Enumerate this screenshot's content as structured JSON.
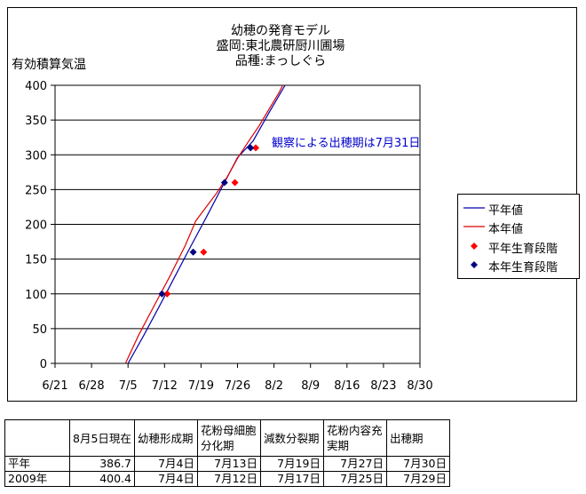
{
  "chart_data": {
    "type": "line",
    "title_lines": [
      "幼穂の発育モデル",
      "盛岡:東北農研厨川圃場",
      "品種:まっしぐら"
    ],
    "ylabel": "有効積算気温",
    "ylim": [
      0,
      400
    ],
    "yticks": [
      0,
      50,
      100,
      150,
      200,
      250,
      300,
      350,
      400
    ],
    "x_tick_labels": [
      "6/21",
      "6/28",
      "7/5",
      "7/12",
      "7/19",
      "7/26",
      "8/2",
      "8/9",
      "8/16",
      "8/23",
      "8/30"
    ],
    "x_ticks_days": [
      0,
      7,
      14,
      21,
      28,
      35,
      42,
      49,
      56,
      63,
      70
    ],
    "x_day_zero": "6/21",
    "x_range_days": [
      0,
      70
    ],
    "grid": "horizontal",
    "series": [
      {
        "name": "平年値",
        "kind": "line",
        "color": "#0000aa",
        "x": [
          14,
          17,
          20,
          23,
          26,
          29,
          32,
          35,
          38,
          41,
          44.5
        ],
        "y": [
          0,
          40,
          82,
          125,
          168,
          210,
          253,
          296,
          320,
          360,
          405
        ]
      },
      {
        "name": "本年値",
        "kind": "line",
        "color": "#dd0000",
        "x": [
          13.5,
          16,
          19,
          22,
          25,
          27,
          29,
          31,
          33,
          35,
          37,
          39,
          41,
          43,
          44
        ],
        "y": [
          0,
          40,
          83,
          125,
          170,
          205,
          225,
          245,
          268,
          295,
          318,
          340,
          365,
          390,
          405
        ]
      },
      {
        "name": "平年生育段階",
        "kind": "scatter",
        "color": "#ff0000",
        "marker": "diamond",
        "x": [
          21.5,
          28.5,
          34.5,
          38.5
        ],
        "y": [
          100,
          160,
          260,
          310
        ]
      },
      {
        "name": "本年生育段階",
        "kind": "scatter",
        "color": "#000080",
        "marker": "diamond",
        "x": [
          20.5,
          26.5,
          32.5,
          37.5
        ],
        "y": [
          100,
          160,
          260,
          310
        ]
      }
    ],
    "annotations": [
      {
        "text": "観察による出穂期は7月31日",
        "color": "#0000cc"
      }
    ],
    "legend_position": "right"
  },
  "table": {
    "headers": [
      "",
      "8月5日現在",
      "幼穂形成期",
      "花粉母細胞分化期",
      "減数分裂期",
      "花粉内容充実期",
      "出穂期"
    ],
    "rows": [
      [
        "平年",
        "386.7",
        "7月4日",
        "7月13日",
        "7月19日",
        "7月27日",
        "7月30日"
      ],
      [
        "2009年",
        "400.4",
        "7月4日",
        "7月12日",
        "7月17日",
        "7月25日",
        "7月29日"
      ]
    ]
  }
}
